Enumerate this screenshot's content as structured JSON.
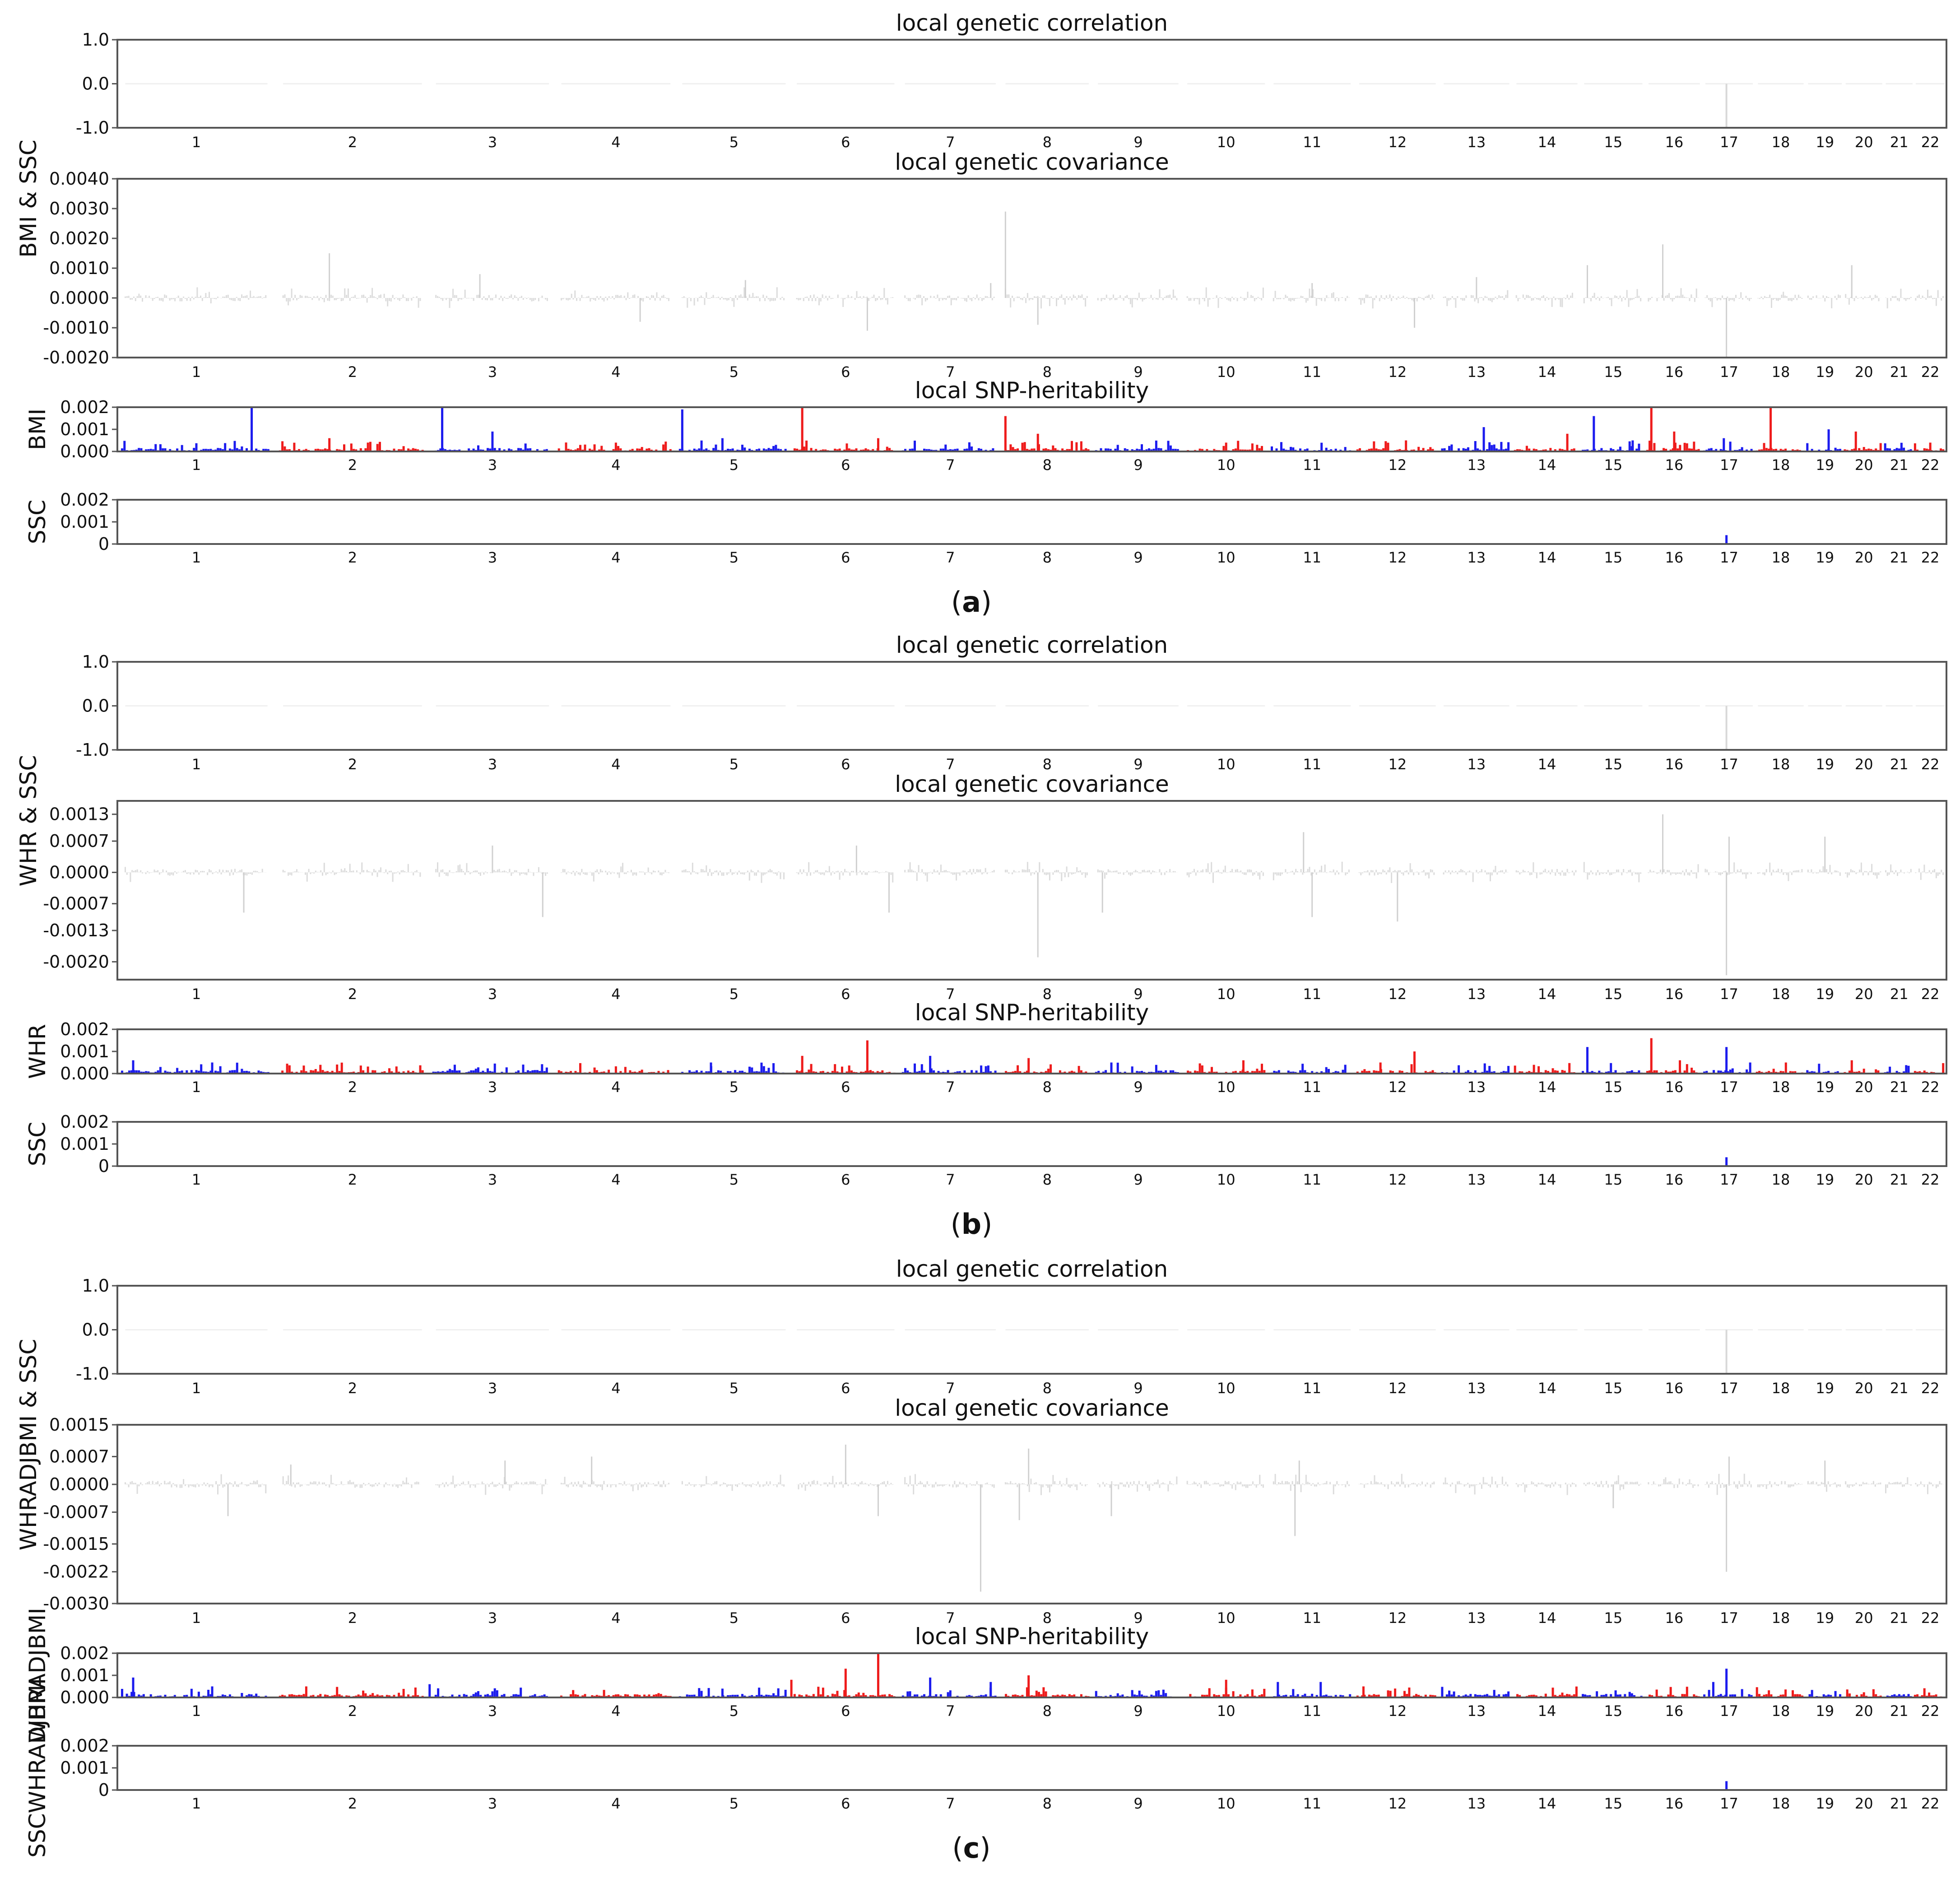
{
  "chart_data": {
    "type": "bar",
    "chromosomes": [
      "1",
      "2",
      "3",
      "4",
      "5",
      "6",
      "7",
      "8",
      "9",
      "10",
      "11",
      "12",
      "13",
      "14",
      "15",
      "16",
      "17",
      "18",
      "19",
      "20",
      "21",
      "22"
    ],
    "panels": [
      {
        "label_open": "(",
        "label_letter": "a",
        "label_close": ")",
        "group_ylabel": "BMI & SSC",
        "correlation": {
          "title": "local genetic correlation",
          "yticks": [
            "1.0",
            "0.0",
            "-1.0"
          ],
          "ylim": [
            -1.0,
            1.0
          ],
          "peaks": [
            {
              "chr": 17,
              "pos": 0.45,
              "value": -1.0
            }
          ]
        },
        "covariance": {
          "title": "local genetic covariance",
          "yticks": [
            "0.0040",
            "0.0030",
            "0.0020",
            "0.0010",
            "0.0000",
            "-0.0010",
            "-0.0020"
          ],
          "ylim": [
            -0.002,
            0.004
          ],
          "peaks": [
            {
              "chr": 2,
              "pos": 0.35,
              "value": 0.0015
            },
            {
              "chr": 3,
              "pos": 0.4,
              "value": 0.0008
            },
            {
              "chr": 4,
              "pos": 0.7,
              "value": -0.0008
            },
            {
              "chr": 5,
              "pos": 0.6,
              "value": 0.0006
            },
            {
              "chr": 6,
              "pos": 0.7,
              "value": -0.0011
            },
            {
              "chr": 7,
              "pos": 0.9,
              "value": 0.0005
            },
            {
              "chr": 8,
              "pos": 0.05,
              "value": 0.0029
            },
            {
              "chr": 8,
              "pos": 0.4,
              "value": -0.0009
            },
            {
              "chr": 11,
              "pos": 0.5,
              "value": 0.0005
            },
            {
              "chr": 12,
              "pos": 0.7,
              "value": -0.001
            },
            {
              "chr": 13,
              "pos": 0.5,
              "value": 0.0007
            },
            {
              "chr": 15,
              "pos": 0.1,
              "value": 0.0011
            },
            {
              "chr": 16,
              "pos": 0.3,
              "value": 0.0018
            },
            {
              "chr": 17,
              "pos": 0.45,
              "value": -0.002
            },
            {
              "chr": 20,
              "pos": 0.2,
              "value": 0.0011
            }
          ]
        },
        "heritability_1": {
          "title": "local SNP-heritability",
          "ylabel": "BMI",
          "yticks": [
            "0.002",
            "0.001",
            "0.000"
          ],
          "ylim": [
            0,
            0.002
          ],
          "peaks": [
            {
              "chr": 1,
              "pos": 0.85,
              "value": 0.002
            },
            {
              "chr": 2,
              "pos": 0.35,
              "value": 0.0006
            },
            {
              "chr": 3,
              "pos": 0.1,
              "value": 0.0021
            },
            {
              "chr": 3,
              "pos": 0.5,
              "value": 0.0009
            },
            {
              "chr": 4,
              "pos": 0.5,
              "value": 0.0004
            },
            {
              "chr": 5,
              "pos": 0.05,
              "value": 0.0019
            },
            {
              "chr": 5,
              "pos": 0.4,
              "value": 0.0006
            },
            {
              "chr": 6,
              "pos": 0.1,
              "value": 0.0021
            },
            {
              "chr": 6,
              "pos": 0.8,
              "value": 0.0006
            },
            {
              "chr": 8,
              "pos": 0.05,
              "value": 0.0016
            },
            {
              "chr": 8,
              "pos": 0.4,
              "value": 0.0008
            },
            {
              "chr": 10,
              "pos": 0.5,
              "value": 0.0004
            },
            {
              "chr": 12,
              "pos": 0.6,
              "value": 0.0005
            },
            {
              "chr": 13,
              "pos": 0.6,
              "value": 0.0011
            },
            {
              "chr": 14,
              "pos": 0.8,
              "value": 0.0008
            },
            {
              "chr": 15,
              "pos": 0.2,
              "value": 0.0016
            },
            {
              "chr": 15,
              "pos": 0.8,
              "value": 0.0005
            },
            {
              "chr": 16,
              "pos": 0.1,
              "value": 0.0022
            },
            {
              "chr": 16,
              "pos": 0.5,
              "value": 0.0009
            },
            {
              "chr": 17,
              "pos": 0.4,
              "value": 0.0006
            },
            {
              "chr": 18,
              "pos": 0.3,
              "value": 0.002
            },
            {
              "chr": 19,
              "pos": 0.6,
              "value": 0.001
            },
            {
              "chr": 20,
              "pos": 0.3,
              "value": 0.0009
            },
            {
              "chr": 22,
              "pos": 0.5,
              "value": 0.0004
            }
          ]
        },
        "heritability_2": {
          "ylabel": "SSC",
          "yticks": [
            "0.002",
            "0.001",
            "0"
          ],
          "ylim": [
            0,
            0.002
          ],
          "peaks": [
            {
              "chr": 17,
              "pos": 0.45,
              "value": 0.0004
            }
          ]
        }
      },
      {
        "label_open": "(",
        "label_letter": "b",
        "label_close": ")",
        "group_ylabel": "WHR & SSC",
        "correlation": {
          "title": "local genetic correlation",
          "yticks": [
            "1.0",
            "0.0",
            "-1.0"
          ],
          "ylim": [
            -1.0,
            1.0
          ],
          "peaks": [
            {
              "chr": 17,
              "pos": 0.45,
              "value": -1.0
            }
          ]
        },
        "covariance": {
          "title": "local genetic covariance",
          "yticks": [
            "0.0013",
            "0.0007",
            "0.0000",
            "-0.0007",
            "-0.0013",
            "-0.0020"
          ],
          "ylim": [
            -0.0024,
            0.0016
          ],
          "peaks": [
            {
              "chr": 1,
              "pos": 0.8,
              "value": -0.0009
            },
            {
              "chr": 3,
              "pos": 0.5,
              "value": 0.0006
            },
            {
              "chr": 3,
              "pos": 0.9,
              "value": -0.001
            },
            {
              "chr": 6,
              "pos": 0.6,
              "value": 0.0006
            },
            {
              "chr": 6,
              "pos": 0.9,
              "value": -0.0009
            },
            {
              "chr": 8,
              "pos": 0.4,
              "value": -0.0019
            },
            {
              "chr": 9,
              "pos": 0.1,
              "value": -0.0009
            },
            {
              "chr": 11,
              "pos": 0.4,
              "value": 0.0009
            },
            {
              "chr": 11,
              "pos": 0.5,
              "value": -0.001
            },
            {
              "chr": 12,
              "pos": 0.5,
              "value": -0.0011
            },
            {
              "chr": 16,
              "pos": 0.3,
              "value": 0.0013
            },
            {
              "chr": 17,
              "pos": 0.45,
              "value": -0.0023
            },
            {
              "chr": 17,
              "pos": 0.5,
              "value": 0.0008
            },
            {
              "chr": 19,
              "pos": 0.5,
              "value": 0.0008
            }
          ]
        },
        "heritability_1": {
          "title": "local SNP-heritability",
          "ylabel": "WHR",
          "yticks": [
            "0.002",
            "0.001",
            "0.000"
          ],
          "ylim": [
            0,
            0.002
          ],
          "peaks": [
            {
              "chr": 1,
              "pos": 0.1,
              "value": 0.0006
            },
            {
              "chr": 1,
              "pos": 0.6,
              "value": 0.0005
            },
            {
              "chr": 3,
              "pos": 0.2,
              "value": 0.0004
            },
            {
              "chr": 5,
              "pos": 0.3,
              "value": 0.0005
            },
            {
              "chr": 6,
              "pos": 0.1,
              "value": 0.0008
            },
            {
              "chr": 6,
              "pos": 0.7,
              "value": 0.0015
            },
            {
              "chr": 7,
              "pos": 0.3,
              "value": 0.0008
            },
            {
              "chr": 8,
              "pos": 0.3,
              "value": 0.0007
            },
            {
              "chr": 9,
              "pos": 0.2,
              "value": 0.0005
            },
            {
              "chr": 10,
              "pos": 0.7,
              "value": 0.0006
            },
            {
              "chr": 12,
              "pos": 0.3,
              "value": 0.0005
            },
            {
              "chr": 12,
              "pos": 0.7,
              "value": 0.001
            },
            {
              "chr": 15,
              "pos": 0.1,
              "value": 0.0012
            },
            {
              "chr": 16,
              "pos": 0.1,
              "value": 0.0016
            },
            {
              "chr": 16,
              "pos": 0.6,
              "value": 0.0006
            },
            {
              "chr": 17,
              "pos": 0.45,
              "value": 0.0012
            },
            {
              "chr": 17,
              "pos": 0.9,
              "value": 0.0005
            },
            {
              "chr": 18,
              "pos": 0.6,
              "value": 0.0005
            },
            {
              "chr": 20,
              "pos": 0.2,
              "value": 0.0006
            }
          ]
        },
        "heritability_2": {
          "ylabel": "SSC",
          "yticks": [
            "0.002",
            "0.001",
            "0"
          ],
          "ylim": [
            0,
            0.002
          ],
          "peaks": [
            {
              "chr": 17,
              "pos": 0.45,
              "value": 0.0004
            }
          ]
        }
      },
      {
        "label_open": "(",
        "label_letter": "c",
        "label_close": ")",
        "group_ylabel": "WHRADJBMI & SSC",
        "correlation": {
          "title": "local genetic correlation",
          "yticks": [
            "1.0",
            "0.0",
            "-1.0"
          ],
          "ylim": [
            -1.0,
            1.0
          ],
          "peaks": [
            {
              "chr": 17,
              "pos": 0.45,
              "value": -1.0
            }
          ]
        },
        "covariance": {
          "title": "local genetic covariance",
          "yticks": [
            "0.0015",
            "0.0007",
            "0.0000",
            "-0.0007",
            "-0.0015",
            "-0.0022",
            "-0.0030"
          ],
          "ylim": [
            -0.003,
            0.0015
          ],
          "peaks": [
            {
              "chr": 1,
              "pos": 0.7,
              "value": -0.0008
            },
            {
              "chr": 2,
              "pos": 0.1,
              "value": 0.0005
            },
            {
              "chr": 3,
              "pos": 0.6,
              "value": 0.0006
            },
            {
              "chr": 4,
              "pos": 0.3,
              "value": 0.0007
            },
            {
              "chr": 6,
              "pos": 0.5,
              "value": 0.001
            },
            {
              "chr": 6,
              "pos": 0.8,
              "value": -0.0008
            },
            {
              "chr": 7,
              "pos": 0.8,
              "value": -0.0027
            },
            {
              "chr": 8,
              "pos": 0.2,
              "value": -0.0009
            },
            {
              "chr": 8,
              "pos": 0.3,
              "value": 0.0009
            },
            {
              "chr": 9,
              "pos": 0.2,
              "value": -0.0008
            },
            {
              "chr": 11,
              "pos": 0.3,
              "value": -0.0013
            },
            {
              "chr": 11,
              "pos": 0.35,
              "value": 0.0006
            },
            {
              "chr": 15,
              "pos": 0.5,
              "value": -0.0006
            },
            {
              "chr": 17,
              "pos": 0.45,
              "value": -0.0022
            },
            {
              "chr": 17,
              "pos": 0.5,
              "value": 0.0007
            },
            {
              "chr": 19,
              "pos": 0.5,
              "value": 0.0006
            }
          ]
        },
        "heritability_1": {
          "title": "local SNP-heritability",
          "ylabel": "WHRADJBMI",
          "yticks": [
            "0.002",
            "0.001",
            "0.000"
          ],
          "ylim": [
            0,
            0.002
          ],
          "peaks": [
            {
              "chr": 1,
              "pos": 0.1,
              "value": 0.0009
            },
            {
              "chr": 1,
              "pos": 0.6,
              "value": 0.0005
            },
            {
              "chr": 2,
              "pos": 0.2,
              "value": 0.0005
            },
            {
              "chr": 3,
              "pos": 0.0,
              "value": 0.0006
            },
            {
              "chr": 5,
              "pos": 0.4,
              "value": 0.0004
            },
            {
              "chr": 6,
              "pos": 0.0,
              "value": 0.0008
            },
            {
              "chr": 6,
              "pos": 0.5,
              "value": 0.0013
            },
            {
              "chr": 6,
              "pos": 0.8,
              "value": 0.0021
            },
            {
              "chr": 7,
              "pos": 0.3,
              "value": 0.0009
            },
            {
              "chr": 7,
              "pos": 0.9,
              "value": 0.0007
            },
            {
              "chr": 8,
              "pos": 0.3,
              "value": 0.001
            },
            {
              "chr": 10,
              "pos": 0.5,
              "value": 0.0008
            },
            {
              "chr": 11,
              "pos": 0.1,
              "value": 0.0007
            },
            {
              "chr": 11,
              "pos": 0.6,
              "value": 0.0007
            },
            {
              "chr": 12,
              "pos": 0.1,
              "value": 0.0005
            },
            {
              "chr": 17,
              "pos": 0.45,
              "value": 0.0013
            },
            {
              "chr": 17,
              "pos": 0.2,
              "value": 0.0007
            }
          ]
        },
        "heritability_2": {
          "ylabel": "SSCWHRADJBMI",
          "yticks": [
            "0.002",
            "0.001",
            "0"
          ],
          "ylim": [
            0,
            0.002
          ],
          "peaks": [
            {
              "chr": 17,
              "pos": 0.45,
              "value": 0.0004
            }
          ]
        }
      }
    ]
  }
}
